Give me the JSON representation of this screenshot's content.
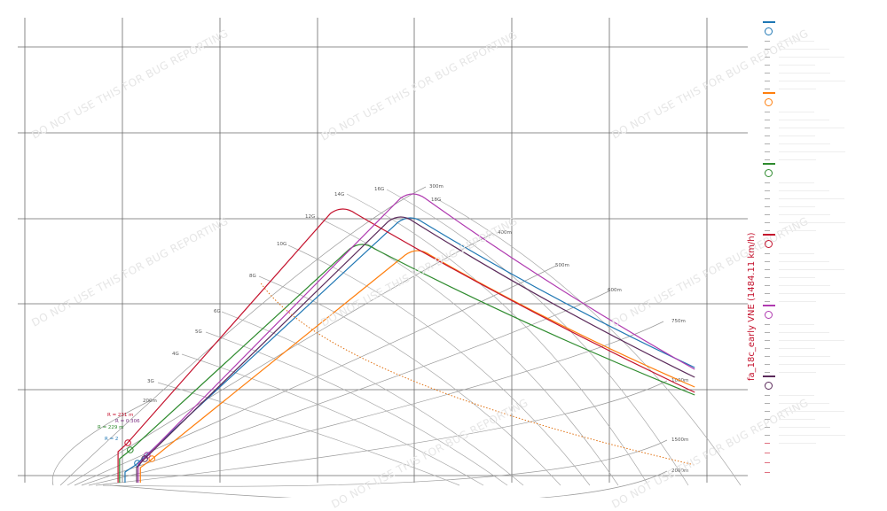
{
  "chart_data": {
    "type": "line",
    "title": "",
    "xlabel": "",
    "ylabel": "",
    "grid": true,
    "legend_placement": "right",
    "side_title": "fa_18c_early VNE (1484.11 km/h)",
    "watermark": "DO NOT USE THIS FOR BUG REPORTING",
    "xlim": [
      0,
      1500
    ],
    "ylim": [
      0,
      52
    ],
    "g_labels": [
      "3G",
      "4G",
      "5G",
      "6G",
      "8G",
      "10G",
      "12G",
      "14G",
      "16G",
      "18G"
    ],
    "radius_labels": [
      "200m",
      "300m",
      "400m",
      "500m",
      "600m",
      "750m",
      "1000m",
      "1500m",
      "2000m"
    ],
    "turn_radius_annotations": [
      {
        "text": "R = 231 m",
        "color": "#c4122d"
      },
      {
        "text": "R = 0.306",
        "color": "#7a2e80"
      },
      {
        "text": "R = 229 m",
        "color": "#2e8b2e"
      },
      {
        "text": "R = 2",
        "color": "#1f77b4"
      }
    ],
    "series": [
      {
        "color": "#1f77b4",
        "corner": [
          230,
          1.5
        ],
        "peak": [
          800,
          29.5
        ],
        "end": [
          1390,
          12.5
        ]
      },
      {
        "color": "#ff7f0e",
        "corner": [
          260,
          2.0
        ],
        "peak": [
          815,
          25.8
        ],
        "end": [
          1390,
          10.3
        ]
      },
      {
        "color": "#2e8b2e",
        "corner": [
          215,
          3.0
        ],
        "peak": [
          700,
          26.5
        ],
        "end": [
          1390,
          9.4
        ]
      },
      {
        "color": "#c4122d",
        "corner": [
          210,
          3.8
        ],
        "peak": [
          660,
          30.5
        ],
        "end": [
          1390,
          9.7
        ]
      },
      {
        "color": "#b03ab0",
        "corner": [
          250,
          2.4
        ],
        "peak": [
          805,
          32.2
        ],
        "end": [
          1390,
          12.3
        ]
      },
      {
        "color": "#5a2a5a",
        "corner": [
          245,
          2.0
        ],
        "peak": [
          780,
          29.6
        ],
        "end": [
          1390,
          11.4
        ]
      },
      {
        "color": "#e07010",
        "dashed": true,
        "corner": [
          490,
          22.0
        ],
        "peak": [
          490,
          22.0
        ],
        "end": [
          1390,
          1.5
        ]
      }
    ]
  }
}
